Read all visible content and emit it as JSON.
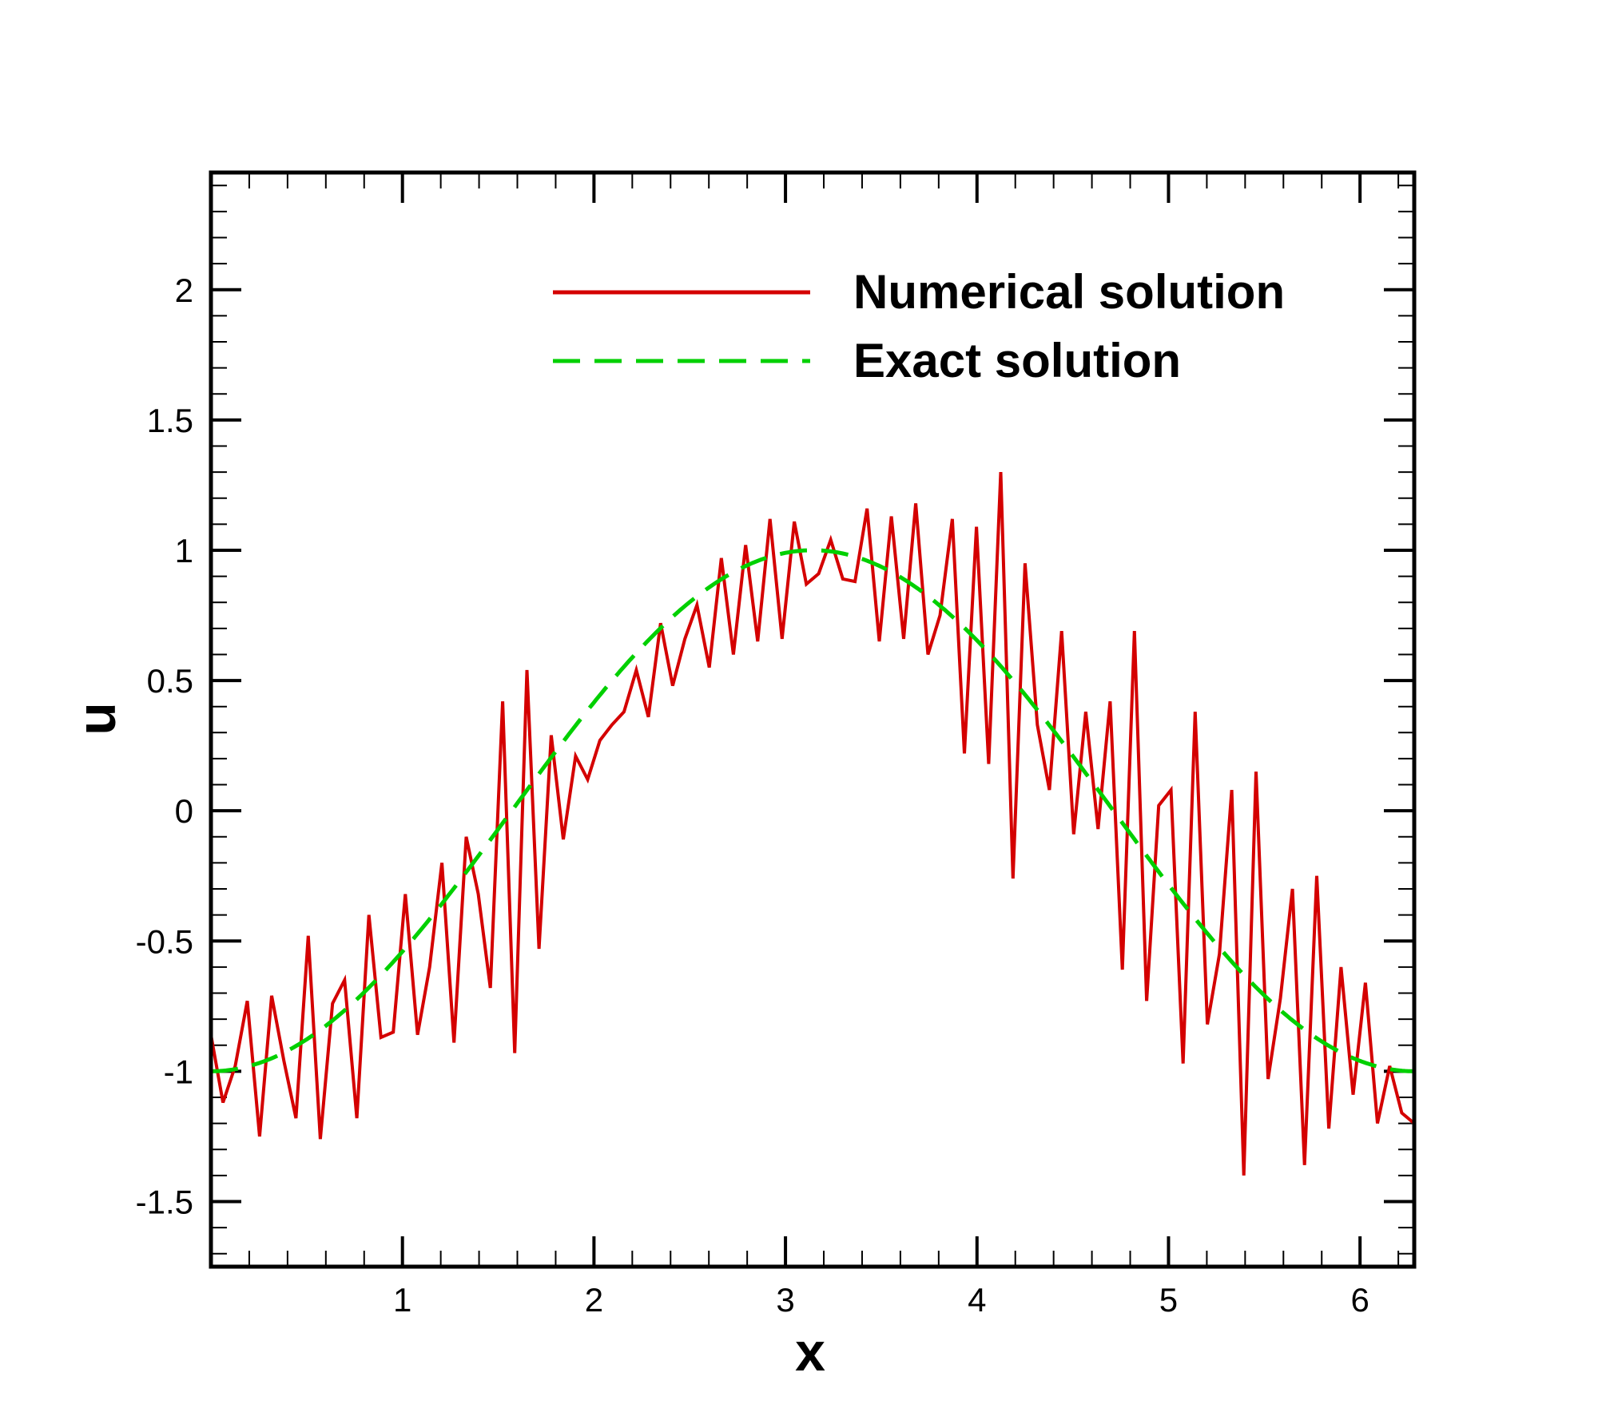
{
  "chart_data": {
    "type": "line",
    "xlabel": "x",
    "ylabel": "u",
    "xlim": [
      0,
      6.283
    ],
    "ylim": [
      -1.75,
      2.45
    ],
    "xticks": [
      1,
      2,
      3,
      4,
      5,
      6
    ],
    "yticks": [
      -1.5,
      -1,
      -0.5,
      0,
      0.5,
      1,
      1.5,
      2
    ],
    "ytick_labels": [
      "-1.5",
      "-1",
      "-0.5",
      "0",
      "0.5",
      "1",
      "1.5",
      "2"
    ],
    "grid": false,
    "legend_position": "top-right",
    "series": [
      {
        "name": "Numerical solution",
        "color": "#d40000",
        "style": "solid",
        "x": [
          0,
          0.063,
          0.127,
          0.19,
          0.254,
          0.317,
          0.381,
          0.444,
          0.508,
          0.571,
          0.635,
          0.698,
          0.762,
          0.825,
          0.888,
          0.952,
          1.015,
          1.079,
          1.142,
          1.206,
          1.269,
          1.333,
          1.396,
          1.459,
          1.523,
          1.586,
          1.65,
          1.713,
          1.777,
          1.84,
          1.904,
          1.967,
          2.031,
          2.094,
          2.157,
          2.221,
          2.284,
          2.348,
          2.411,
          2.475,
          2.538,
          2.602,
          2.665,
          2.728,
          2.792,
          2.855,
          2.919,
          2.982,
          3.046,
          3.109,
          3.173,
          3.236,
          3.299,
          3.363,
          3.426,
          3.49,
          3.553,
          3.617,
          3.68,
          3.744,
          3.807,
          3.871,
          3.934,
          3.997,
          4.061,
          4.124,
          4.188,
          4.251,
          4.315,
          4.378,
          4.442,
          4.505,
          4.568,
          4.632,
          4.695,
          4.759,
          4.822,
          4.886,
          4.949,
          5.013,
          5.076,
          5.139,
          5.203,
          5.266,
          5.33,
          5.393,
          5.457,
          5.52,
          5.584,
          5.647,
          5.71,
          5.774,
          5.837,
          5.901,
          5.964,
          6.028,
          6.091,
          6.155,
          6.218,
          6.283
        ],
        "y": [
          -0.86,
          -1.12,
          -0.98,
          -0.73,
          -1.25,
          -0.71,
          -0.96,
          -1.18,
          -0.48,
          -1.26,
          -0.74,
          -0.65,
          -1.18,
          -0.4,
          -0.87,
          -0.85,
          -0.32,
          -0.86,
          -0.6,
          -0.2,
          -0.89,
          -0.1,
          -0.32,
          -0.68,
          0.42,
          -0.93,
          0.54,
          -0.53,
          0.29,
          -0.11,
          0.21,
          0.12,
          0.27,
          0.33,
          0.38,
          0.54,
          0.36,
          0.72,
          0.48,
          0.66,
          0.79,
          0.55,
          0.97,
          0.6,
          1.02,
          0.65,
          1.12,
          0.66,
          1.11,
          0.87,
          0.91,
          1.04,
          0.89,
          0.88,
          1.16,
          0.65,
          1.13,
          0.66,
          1.18,
          0.6,
          0.75,
          1.12,
          0.22,
          1.09,
          0.18,
          1.3,
          -0.26,
          0.95,
          0.33,
          0.08,
          0.69,
          -0.09,
          0.38,
          -0.07,
          0.42,
          -0.61,
          0.69,
          -0.73,
          0.02,
          0.08,
          -0.97,
          0.38,
          -0.82,
          -0.55,
          0.08,
          -1.4,
          0.15,
          -1.03,
          -0.72,
          -0.3,
          -1.36,
          -0.25,
          -1.22,
          -0.6,
          -1.09,
          -0.66,
          -1.2,
          -0.98,
          -1.16,
          -1.2
        ]
      },
      {
        "name": "Exact solution",
        "color": "#00d000",
        "style": "dashed",
        "function": "-cos(x)"
      }
    ]
  }
}
